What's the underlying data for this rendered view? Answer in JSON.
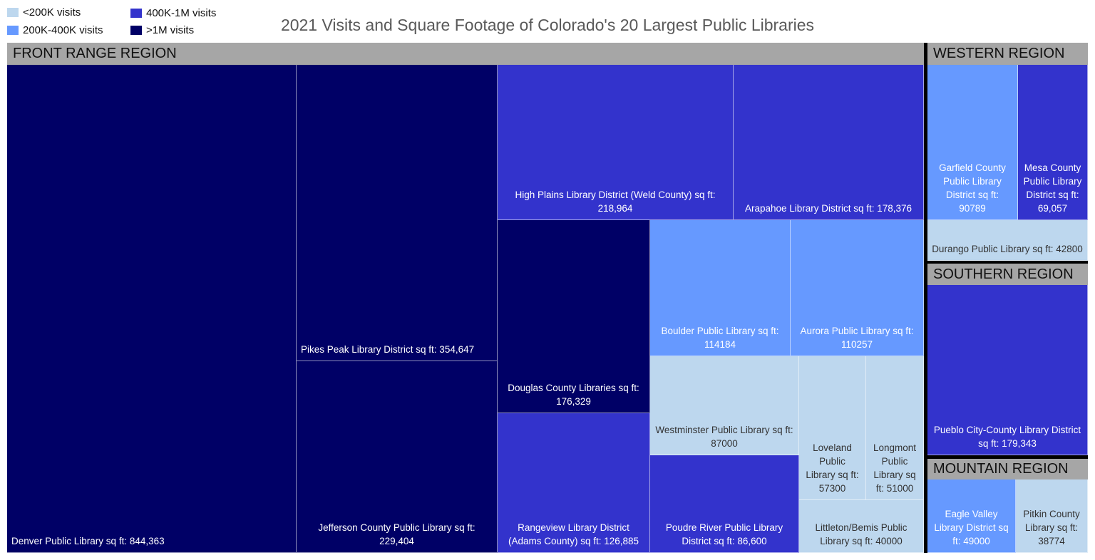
{
  "chart_data": {
    "type": "treemap",
    "title": "2021 Visits and Square Footage of Colorado's 20 Largest Public Libraries",
    "legend": {
      "placement": "top-left",
      "entries": [
        {
          "label": "<200K visits",
          "color": "#BDD7EE"
        },
        {
          "label": "200K-400K visits",
          "color": "#6699FF"
        },
        {
          "label": "400K-1M visits",
          "color": "#3333CC"
        },
        {
          "label": ">1M visits",
          "color": "#000066"
        }
      ]
    },
    "regions": [
      {
        "name": "FRONT RANGE REGION",
        "items": [
          {
            "label": "Denver Public Library sq ft: 844,363",
            "sq_ft": 844363,
            "visits": ">1M visits"
          },
          {
            "label": "Pikes Peak Library District sq ft: 354,647",
            "sq_ft": 354647,
            "visits": ">1M visits"
          },
          {
            "label": "Jefferson County Public Library sq ft: 229,404",
            "sq_ft": 229404,
            "visits": ">1M visits"
          },
          {
            "label": "High Plains Library District (Weld County) sq ft: 218,964",
            "sq_ft": 218964,
            "visits": "400K-1M visits"
          },
          {
            "label": "Arapahoe Library District sq ft: 178,376",
            "sq_ft": 178376,
            "visits": "400K-1M visits"
          },
          {
            "label": "Douglas County Libraries sq ft: 176,329",
            "sq_ft": 176329,
            "visits": ">1M visits"
          },
          {
            "label": "Rangeview Library District (Adams County) sq ft: 126,885",
            "sq_ft": 126885,
            "visits": "400K-1M visits"
          },
          {
            "label": "Boulder Public Library sq ft: 114184",
            "sq_ft": 114184,
            "visits": "200K-400K visits"
          },
          {
            "label": "Aurora Public Library sq ft: 110257",
            "sq_ft": 110257,
            "visits": "200K-400K visits"
          },
          {
            "label": "Westminster Public Library sq ft: 87000",
            "sq_ft": 87000,
            "visits": "<200K visits"
          },
          {
            "label": "Poudre River Public Library District sq ft: 86,600",
            "sq_ft": 86600,
            "visits": "400K-1M visits"
          },
          {
            "label": "Loveland Public Library sq ft: 57300",
            "sq_ft": 57300,
            "visits": "<200K visits"
          },
          {
            "label": "Longmont Public Library sq ft: 51000",
            "sq_ft": 51000,
            "visits": "<200K visits"
          },
          {
            "label": "Littleton/Bemis Public Library sq ft: 40000",
            "sq_ft": 40000,
            "visits": "<200K visits"
          }
        ]
      },
      {
        "name": "WESTERN REGION",
        "items": [
          {
            "label": "Garfield County Public Library District sq ft: 90789",
            "sq_ft": 90789,
            "visits": "200K-400K visits"
          },
          {
            "label": "Mesa County Public Library District sq ft: 69,057",
            "sq_ft": 69057,
            "visits": "400K-1M visits"
          },
          {
            "label": "Durango Public Library sq ft: 42800",
            "sq_ft": 42800,
            "visits": "<200K visits"
          }
        ]
      },
      {
        "name": "SOUTHERN REGION",
        "items": [
          {
            "label": "Pueblo City-County Library District sq ft: 179,343",
            "sq_ft": 179343,
            "visits": "400K-1M visits"
          }
        ]
      },
      {
        "name": "MOUNTAIN REGION",
        "items": [
          {
            "label": "Eagle Valley Library District sq ft: 49000",
            "sq_ft": 49000,
            "visits": "200K-400K visits"
          },
          {
            "label": "Pitkin County Library sq ft: 38774",
            "sq_ft": 38774,
            "visits": "<200K visits"
          }
        ]
      }
    ]
  }
}
